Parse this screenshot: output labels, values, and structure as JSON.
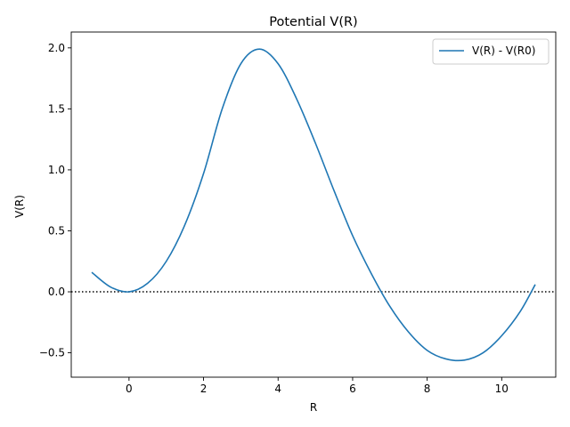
{
  "chart_data": {
    "type": "line",
    "title": "Potential V(R)",
    "xlabel": "R",
    "ylabel": "V(R)",
    "xlim": [
      -1.55,
      11.45
    ],
    "ylim": [
      -0.7,
      2.13
    ],
    "xticks": [
      0,
      2,
      4,
      6,
      8,
      10
    ],
    "xtick_labels": [
      "0",
      "2",
      "4",
      "6",
      "8",
      "10"
    ],
    "yticks": [
      -0.5,
      0.0,
      0.5,
      1.0,
      1.5,
      2.0
    ],
    "ytick_labels": [
      "−0.5",
      "0.0",
      "0.5",
      "1.0",
      "1.5",
      "2.0"
    ],
    "grid": false,
    "legend_position": "top-right",
    "series": [
      {
        "name": "V(R) - V(R0)",
        "color": "#1f77b4",
        "x": [
          -1.0,
          -0.5,
          0.0,
          0.5,
          1.0,
          1.5,
          2.0,
          2.5,
          3.0,
          3.5,
          4.0,
          4.5,
          5.0,
          5.5,
          6.0,
          6.5,
          7.0,
          7.5,
          8.0,
          8.5,
          9.0,
          9.5,
          10.0,
          10.5,
          10.9
        ],
        "y": [
          0.16,
          0.04,
          0.0,
          0.07,
          0.25,
          0.55,
          0.97,
          1.5,
          1.87,
          1.99,
          1.87,
          1.58,
          1.22,
          0.83,
          0.46,
          0.15,
          -0.12,
          -0.33,
          -0.48,
          -0.55,
          -0.56,
          -0.5,
          -0.36,
          -0.16,
          0.06
        ]
      }
    ],
    "reference_line": {
      "y": 0.0,
      "style": "dotted",
      "color": "#000000"
    }
  }
}
